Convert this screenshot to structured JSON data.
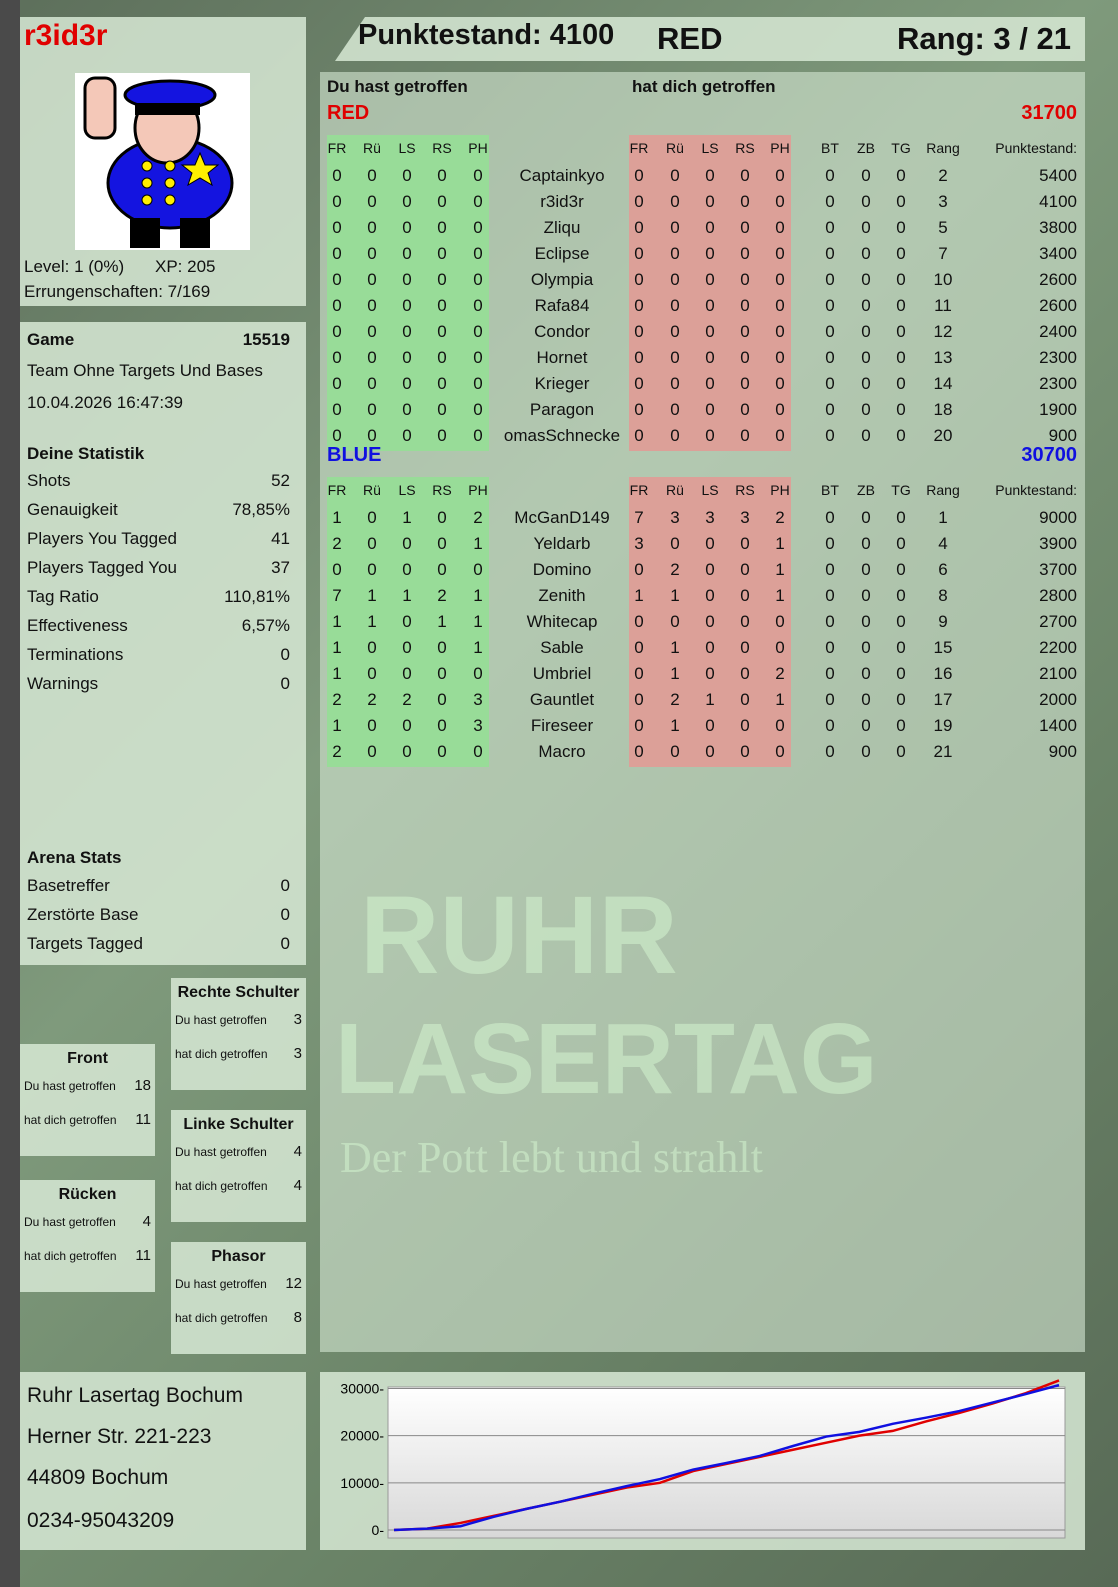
{
  "player": {
    "name": "r3id3r",
    "level": "Level: 1 (0%)",
    "xp": "XP: 205",
    "achievements": "Errungenschaften: 7/169"
  },
  "header": {
    "score": "Punktestand: 4100",
    "team": "RED",
    "rank": "Rang: 3 / 21"
  },
  "game": {
    "label": "Game",
    "id": "15519",
    "mode": "Team Ohne Targets Und Bases",
    "datetime": "10.04.2026 16:47:39"
  },
  "stats": {
    "title": "Deine Statistik",
    "items": [
      [
        "Shots",
        "52"
      ],
      [
        "Genauigkeit",
        "78,85%"
      ],
      [
        "Players You Tagged",
        "41"
      ],
      [
        "Players Tagged You",
        "37"
      ],
      [
        "Tag Ratio",
        "110,81%"
      ],
      [
        "Effectiveness",
        "6,57%"
      ],
      [
        "Terminations",
        "0"
      ],
      [
        "Warnings",
        "0"
      ]
    ]
  },
  "arena": {
    "title": "Arena Stats",
    "items": [
      [
        "Basetreffer",
        "0"
      ],
      [
        "Zerstörte Base",
        "0"
      ],
      [
        "Targets Tagged",
        "0"
      ]
    ]
  },
  "hits": {
    "you_hit": "Du hast getroffen",
    "hit_you": "hat dich getroffen",
    "zones": [
      {
        "name": "Rechte Schulter",
        "you": "3",
        "them": "3"
      },
      {
        "name": "Front",
        "you": "18",
        "them": "11"
      },
      {
        "name": "Linke Schulter",
        "you": "4",
        "them": "4"
      },
      {
        "name": "Rücken",
        "you": "4",
        "them": "11"
      },
      {
        "name": "Phasor",
        "you": "12",
        "them": "8"
      }
    ]
  },
  "table": {
    "you_hit": "Du hast getroffen",
    "hit_you": "hat dich getroffen",
    "cols_hit": [
      "FR",
      "Rü",
      "LS",
      "RS",
      "PH"
    ],
    "cols_extra": [
      "BT",
      "ZB",
      "TG",
      "Rang",
      "Punktestand:"
    ],
    "teams": [
      {
        "name": "RED",
        "total": "31700",
        "color": "#e00000",
        "players": [
          [
            "Captainkyo",
            [
              0,
              0,
              0,
              0,
              0
            ],
            [
              0,
              0,
              0,
              0,
              0
            ],
            [
              0,
              0,
              0,
              2,
              5400
            ]
          ],
          [
            "r3id3r",
            [
              0,
              0,
              0,
              0,
              0
            ],
            [
              0,
              0,
              0,
              0,
              0
            ],
            [
              0,
              0,
              0,
              3,
              4100
            ]
          ],
          [
            "Zliqu",
            [
              0,
              0,
              0,
              0,
              0
            ],
            [
              0,
              0,
              0,
              0,
              0
            ],
            [
              0,
              0,
              0,
              5,
              3800
            ]
          ],
          [
            "Eclipse",
            [
              0,
              0,
              0,
              0,
              0
            ],
            [
              0,
              0,
              0,
              0,
              0
            ],
            [
              0,
              0,
              0,
              7,
              3400
            ]
          ],
          [
            "Olympia",
            [
              0,
              0,
              0,
              0,
              0
            ],
            [
              0,
              0,
              0,
              0,
              0
            ],
            [
              0,
              0,
              0,
              10,
              2600
            ]
          ],
          [
            "Rafa84",
            [
              0,
              0,
              0,
              0,
              0
            ],
            [
              0,
              0,
              0,
              0,
              0
            ],
            [
              0,
              0,
              0,
              11,
              2600
            ]
          ],
          [
            "Condor",
            [
              0,
              0,
              0,
              0,
              0
            ],
            [
              0,
              0,
              0,
              0,
              0
            ],
            [
              0,
              0,
              0,
              12,
              2400
            ]
          ],
          [
            "Hornet",
            [
              0,
              0,
              0,
              0,
              0
            ],
            [
              0,
              0,
              0,
              0,
              0
            ],
            [
              0,
              0,
              0,
              13,
              2300
            ]
          ],
          [
            "Krieger",
            [
              0,
              0,
              0,
              0,
              0
            ],
            [
              0,
              0,
              0,
              0,
              0
            ],
            [
              0,
              0,
              0,
              14,
              2300
            ]
          ],
          [
            "Paragon",
            [
              0,
              0,
              0,
              0,
              0
            ],
            [
              0,
              0,
              0,
              0,
              0
            ],
            [
              0,
              0,
              0,
              18,
              1900
            ]
          ],
          [
            "omasSchnecke",
            [
              0,
              0,
              0,
              0,
              0
            ],
            [
              0,
              0,
              0,
              0,
              0
            ],
            [
              0,
              0,
              0,
              20,
              900
            ]
          ]
        ]
      },
      {
        "name": "BLUE",
        "total": "30700",
        "color": "#1010e0",
        "players": [
          [
            "McGanD149",
            [
              1,
              0,
              1,
              0,
              2
            ],
            [
              7,
              3,
              3,
              3,
              2
            ],
            [
              0,
              0,
              0,
              1,
              9000
            ]
          ],
          [
            "Yeldarb",
            [
              2,
              0,
              0,
              0,
              1
            ],
            [
              3,
              0,
              0,
              0,
              1
            ],
            [
              0,
              0,
              0,
              4,
              3900
            ]
          ],
          [
            "Domino",
            [
              0,
              0,
              0,
              0,
              0
            ],
            [
              0,
              2,
              0,
              0,
              1
            ],
            [
              0,
              0,
              0,
              6,
              3700
            ]
          ],
          [
            "Zenith",
            [
              7,
              1,
              1,
              2,
              1
            ],
            [
              1,
              1,
              0,
              0,
              1
            ],
            [
              0,
              0,
              0,
              8,
              2800
            ]
          ],
          [
            "Whitecap",
            [
              1,
              1,
              0,
              1,
              1
            ],
            [
              0,
              0,
              0,
              0,
              0
            ],
            [
              0,
              0,
              0,
              9,
              2700
            ]
          ],
          [
            "Sable",
            [
              1,
              0,
              0,
              0,
              1
            ],
            [
              0,
              1,
              0,
              0,
              0
            ],
            [
              0,
              0,
              0,
              15,
              2200
            ]
          ],
          [
            "Umbriel",
            [
              1,
              0,
              0,
              0,
              0
            ],
            [
              0,
              1,
              0,
              0,
              2
            ],
            [
              0,
              0,
              0,
              16,
              2100
            ]
          ],
          [
            "Gauntlet",
            [
              2,
              2,
              2,
              0,
              3
            ],
            [
              0,
              2,
              1,
              0,
              1
            ],
            [
              0,
              0,
              0,
              17,
              2000
            ]
          ],
          [
            "Fireseer",
            [
              1,
              0,
              0,
              0,
              3
            ],
            [
              0,
              1,
              0,
              0,
              0
            ],
            [
              0,
              0,
              0,
              19,
              1400
            ]
          ],
          [
            "Macro",
            [
              2,
              0,
              0,
              0,
              0
            ],
            [
              0,
              0,
              0,
              0,
              0
            ],
            [
              0,
              0,
              0,
              21,
              900
            ]
          ]
        ]
      }
    ]
  },
  "address": [
    "Ruhr Lasertag Bochum",
    "Herner Str. 221-223",
    "44809 Bochum",
    "0234-95043209"
  ],
  "logo": {
    "line1": "RUHR",
    "line2": "LASERTAG",
    "tagline": "Der Pott lebt und strahlt"
  },
  "colors": {
    "red": "#e00000",
    "blue": "#1010e0",
    "hit_green": "#98dc98",
    "hit_red": "#dca098"
  },
  "chart_data": {
    "type": "line",
    "ylim": [
      0,
      32000
    ],
    "yticks": [
      0,
      10000,
      20000,
      30000
    ],
    "grid": true,
    "x": [
      0,
      1,
      2,
      3,
      4,
      5,
      6,
      7,
      8,
      9,
      10,
      11,
      12,
      13,
      14,
      15,
      16,
      17,
      18,
      19,
      20
    ],
    "series": [
      {
        "color": "#e00000",
        "values": [
          0,
          300,
          1500,
          3000,
          4500,
          6000,
          7500,
          9000,
          10000,
          12500,
          14000,
          15500,
          17000,
          18500,
          20000,
          21000,
          23000,
          24800,
          26800,
          29000,
          31700
        ]
      },
      {
        "color": "#1010e0",
        "values": [
          0,
          300,
          800,
          2800,
          4500,
          6000,
          7700,
          9300,
          10800,
          12800,
          14200,
          15700,
          17800,
          19800,
          20800,
          22500,
          23800,
          25200,
          27000,
          28800,
          30700
        ]
      }
    ]
  }
}
